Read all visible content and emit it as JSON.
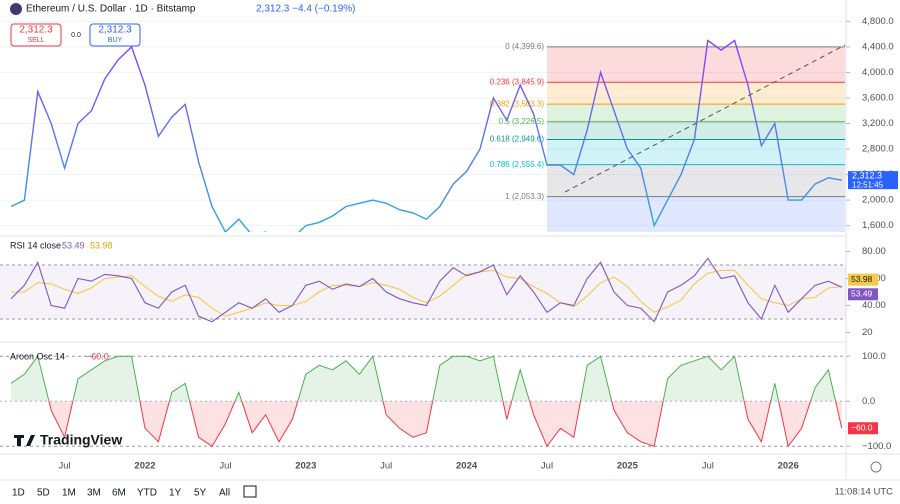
{
  "header": {
    "title": "Ethereum / U.S. Dollar · 1D · Bitstamp",
    "quote": "2,312.3 −4.4 (−0.19%)",
    "sell_price": "2,312.3",
    "sell": "SELL",
    "buy_price": "2,312.3",
    "buy": "BUY",
    "spread": "0.0"
  },
  "chart_data": [
    {
      "type": "line",
      "color_top": "#8a3ffc",
      "color_bottom": "#29a9e0",
      "categories": [
        null,
        null,
        null,
        null,
        "Jul",
        null,
        null,
        null,
        null,
        null,
        "2022",
        null,
        null,
        null,
        null,
        null,
        "Jul",
        null,
        null,
        null,
        null,
        null,
        "2023",
        null,
        null,
        null,
        null,
        null,
        "Jul",
        null,
        null,
        null,
        null,
        null,
        "2024",
        null,
        null,
        null,
        null,
        null,
        "Jul",
        null,
        null,
        null,
        null,
        null,
        "2025",
        null,
        null,
        null,
        null,
        null,
        "Jul",
        null,
        null,
        null,
        null,
        null,
        "2026",
        null,
        null,
        null,
        null
      ],
      "values": [
        1900,
        2000,
        3700,
        3200,
        2500,
        3200,
        3400,
        3900,
        4200,
        4400,
        3800,
        3000,
        3300,
        3500,
        2600,
        1900,
        1500,
        1700,
        1450,
        1500,
        1350,
        1400,
        1600,
        1650,
        1750,
        1900,
        1950,
        2000,
        1950,
        1850,
        1800,
        1700,
        1900,
        2250,
        2450,
        2800,
        3600,
        3250,
        3800,
        3350,
        2550,
        2550,
        2400,
        3100,
        4000,
        3400,
        2800,
        2500,
        1600,
        2000,
        2400,
        2950,
        4500,
        4350,
        4500,
        3800,
        2850,
        3200,
        2000,
        2000,
        2250,
        2350,
        2312.3
      ],
      "ylim": [
        1500,
        4900
      ],
      "yticks": [
        {
          "value": 1600,
          "label": "1,600.0"
        },
        {
          "value": 2000,
          "label": "2,000.0"
        },
        {
          "value": 2400,
          "label": "2,400.0"
        },
        {
          "value": 2800,
          "label": "2,800.0"
        },
        {
          "value": 3200,
          "label": "3,200.0"
        },
        {
          "value": 3600,
          "label": "3,600.0"
        },
        {
          "value": 4000,
          "label": "4,000.0"
        },
        {
          "value": 4400,
          "label": "4,400.0"
        },
        {
          "value": 4800,
          "label": "4,800.0"
        }
      ],
      "grid": true,
      "fib": [
        {
          "value": 4399.6,
          "label": "0 (4,399.6)",
          "color": "#787b86"
        },
        {
          "value": 3845.9,
          "label": "0.236 (3,845.9)",
          "color": "#f23645"
        },
        {
          "value": 3503.3,
          "label": "0.382 (3,503.3)",
          "color": "#ff9800"
        },
        {
          "value": 3226.5,
          "label": "0.5 (3,226.5)",
          "color": "#4caf50"
        },
        {
          "value": 2949.6,
          "label": "0.618 (2,949.6)",
          "color": "#089981"
        },
        {
          "value": 2555.4,
          "label": "0.786 (2,555.4)",
          "color": "#00bcd4"
        },
        {
          "value": 2053.3,
          "label": "1 (2,053.3)",
          "color": "#787b86"
        }
      ],
      "fib_below_color": "#2962ff",
      "price_tag": "2,312.3",
      "countdown": "12:51:45"
    },
    {
      "type": "line",
      "title": "RSI 14 close",
      "ylim": [
        10,
        90
      ],
      "yticks": [
        20,
        {
          "value": 40,
          "label": "40.00"
        },
        {
          "value": 60,
          "label": "60.00"
        },
        {
          "value": 80,
          "label": "80.00"
        }
      ],
      "levels": [
        70,
        30
      ],
      "series": [
        {
          "name": "RSI",
          "color": "#7e57c2",
          "values": [
            45,
            55,
            72,
            40,
            38,
            60,
            58,
            63,
            62,
            60,
            42,
            38,
            50,
            55,
            32,
            28,
            35,
            42,
            38,
            45,
            35,
            40,
            55,
            58,
            52,
            56,
            54,
            60,
            50,
            45,
            42,
            40,
            58,
            68,
            62,
            65,
            70,
            48,
            62,
            50,
            35,
            42,
            40,
            60,
            72,
            50,
            40,
            38,
            28,
            50,
            55,
            62,
            75,
            60,
            62,
            42,
            30,
            55,
            35,
            45,
            55,
            58,
            53.49
          ]
        },
        {
          "name": "MA",
          "color": "#f7c948",
          "values": [
            50,
            50,
            57,
            56,
            52,
            49,
            53,
            60,
            61,
            62,
            54,
            47,
            43,
            48,
            46,
            38,
            32,
            35,
            38,
            42,
            40,
            40,
            43,
            50,
            55,
            55,
            54,
            57,
            55,
            52,
            46,
            42,
            47,
            55,
            63,
            65,
            66,
            61,
            60,
            54,
            49,
            42,
            39,
            47,
            57,
            61,
            54,
            43,
            35,
            39,
            44,
            56,
            64,
            66,
            66,
            55,
            45,
            42,
            40,
            45,
            46,
            53,
            53.98
          ]
        }
      ],
      "value_labels": [
        "53.49",
        "53.98"
      ]
    },
    {
      "type": "area",
      "title": "Aroon Osc 14",
      "ylim": [
        -115,
        125
      ],
      "yticks": [
        {
          "value": 100,
          "label": "100.0"
        },
        {
          "value": 0,
          "label": "0.0"
        },
        {
          "value": -100,
          "label": "−100.0"
        }
      ],
      "color_up": "#4caf50",
      "color_down": "#f23645",
      "values": [
        40,
        60,
        100,
        -20,
        -80,
        50,
        70,
        90,
        100,
        100,
        -60,
        -90,
        20,
        40,
        -80,
        -100,
        -50,
        20,
        -70,
        -30,
        -90,
        -40,
        60,
        80,
        70,
        90,
        60,
        100,
        -30,
        -60,
        -80,
        -70,
        80,
        100,
        100,
        90,
        100,
        -40,
        70,
        -30,
        -100,
        -60,
        -80,
        80,
        100,
        -20,
        -70,
        -90,
        -100,
        50,
        80,
        90,
        100,
        70,
        100,
        -40,
        -90,
        40,
        -100,
        -60,
        30,
        70,
        -60
      ],
      "value_label": "−60.0"
    }
  ],
  "toolbar": {
    "ranges": [
      "1D",
      "5D",
      "1M",
      "3M",
      "6M",
      "YTD",
      "1Y",
      "5Y",
      "All"
    ],
    "time": "11:08:14 UTC",
    "logo": "TradingView"
  }
}
